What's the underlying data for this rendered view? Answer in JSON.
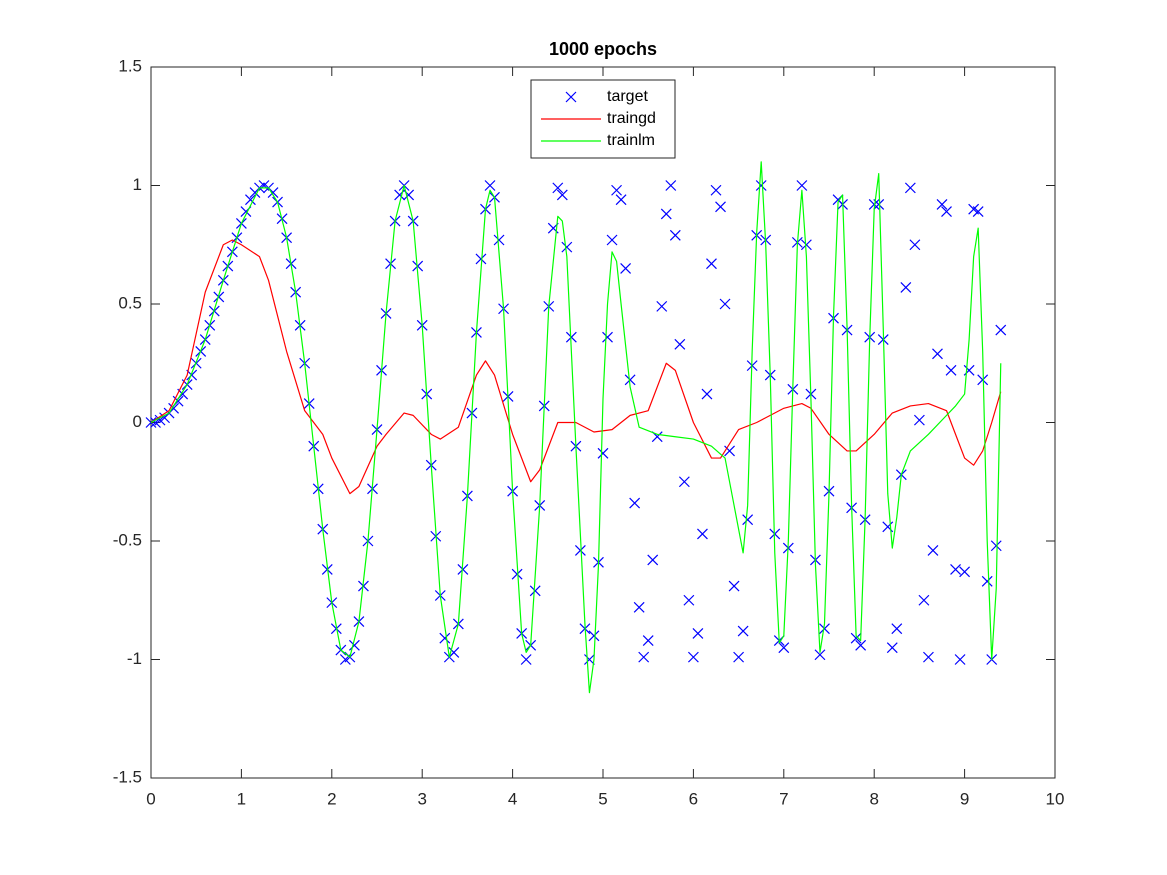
{
  "chart_data": {
    "type": "line",
    "title": "1000 epochs",
    "xlim": [
      0,
      10
    ],
    "ylim": [
      -1.5,
      1.5
    ],
    "xticks": [
      0,
      1,
      2,
      3,
      4,
      5,
      6,
      7,
      8,
      9,
      10
    ],
    "yticks": [
      -1.5,
      -1,
      -0.5,
      0,
      0.5,
      1,
      1.5
    ],
    "grid": false,
    "legend_location": "north",
    "series": [
      {
        "name": "target",
        "color": "#0000ff",
        "mode": "markers",
        "x": [
          0,
          0.05,
          0.1,
          0.15,
          0.2,
          0.25,
          0.3,
          0.35,
          0.4,
          0.45,
          0.5,
          0.55,
          0.6,
          0.65,
          0.7,
          0.75,
          0.8,
          0.85,
          0.9,
          0.95,
          1,
          1.05,
          1.1,
          1.15,
          1.2,
          1.25,
          1.3,
          1.35,
          1.4,
          1.45,
          1.5,
          1.55,
          1.6,
          1.65,
          1.7,
          1.75,
          1.8,
          1.85,
          1.9,
          1.95,
          2,
          2.05,
          2.1,
          2.15,
          2.2,
          2.25,
          2.3,
          2.35,
          2.4,
          2.45,
          2.5,
          2.55,
          2.6,
          2.65,
          2.7,
          2.75,
          2.8,
          2.85,
          2.9,
          2.95,
          3,
          3.05,
          3.1,
          3.15,
          3.2,
          3.25,
          3.3,
          3.35,
          3.4,
          3.45,
          3.5,
          3.55,
          3.6,
          3.65,
          3.7,
          3.75,
          3.8,
          3.85,
          3.9,
          3.95,
          4,
          4.05,
          4.1,
          4.15,
          4.2,
          4.25,
          4.3,
          4.35,
          4.4,
          4.45,
          4.5,
          4.55,
          4.6,
          4.65,
          4.7,
          4.75,
          4.8,
          4.85,
          4.9,
          4.95,
          5,
          5.05,
          5.1,
          5.15,
          5.2,
          5.25,
          5.3,
          5.35,
          5.4,
          5.45,
          5.5,
          5.55,
          5.6,
          5.65,
          5.7,
          5.75,
          5.8,
          5.85,
          5.9,
          5.95,
          6,
          6.05,
          6.1,
          6.15,
          6.2,
          6.25,
          6.3,
          6.35,
          6.4,
          6.45,
          6.5,
          6.55,
          6.6,
          6.65,
          6.7,
          6.75,
          6.8,
          6.85,
          6.9,
          6.95,
          7,
          7.05,
          7.1,
          7.15,
          7.2,
          7.25,
          7.3,
          7.35,
          7.4,
          7.45,
          7.5,
          7.55,
          7.6,
          7.65,
          7.7,
          7.75,
          7.8,
          7.85,
          7.9,
          7.95,
          8,
          8.05,
          8.1,
          8.15,
          8.2,
          8.25,
          8.3,
          8.35,
          8.4,
          8.45,
          8.5,
          8.55,
          8.6,
          8.65,
          8.7,
          8.75,
          8.8,
          8.85,
          8.9,
          8.95,
          9,
          9.05,
          9.1,
          9.15,
          9.2,
          9.25,
          9.3,
          9.35,
          9.4
        ],
        "values": [
          0,
          0,
          0.01,
          0.02,
          0.04,
          0.06,
          0.09,
          0.12,
          0.16,
          0.2,
          0.25,
          0.3,
          0.35,
          0.41,
          0.47,
          0.53,
          0.6,
          0.66,
          0.72,
          0.78,
          0.84,
          0.89,
          0.94,
          0.97,
          0.99,
          1,
          0.99,
          0.97,
          0.93,
          0.86,
          0.78,
          0.67,
          0.55,
          0.41,
          0.25,
          0.08,
          -0.1,
          -0.28,
          -0.45,
          -0.62,
          -0.76,
          -0.87,
          -0.96,
          -1,
          -0.99,
          -0.94,
          -0.84,
          -0.69,
          -0.5,
          -0.28,
          -0.03,
          0.22,
          0.46,
          0.67,
          0.85,
          0.96,
          1,
          0.96,
          0.85,
          0.66,
          0.41,
          0.12,
          -0.18,
          -0.48,
          -0.73,
          -0.91,
          -0.99,
          -0.97,
          -0.85,
          -0.62,
          -0.31,
          0.04,
          0.38,
          0.69,
          0.9,
          1,
          0.95,
          0.77,
          0.48,
          0.11,
          -0.29,
          -0.64,
          -0.89,
          -1,
          -0.94,
          -0.71,
          -0.35,
          0.07,
          0.49,
          0.82,
          0.99,
          0.96,
          0.74,
          0.36,
          -0.1,
          -0.54,
          -0.87,
          -1,
          -0.9,
          -0.59,
          -0.13,
          0.36,
          0.77,
          0.98,
          0.94,
          0.65,
          0.18,
          -0.34,
          -0.78,
          -0.99,
          -0.92,
          -0.58,
          -0.06,
          0.49,
          0.88,
          1,
          0.79,
          0.33,
          -0.25,
          -0.75,
          -0.99,
          -0.89,
          -0.47,
          0.12,
          0.67,
          0.98,
          0.91,
          0.5,
          -0.12,
          -0.69,
          -0.99,
          -0.88,
          -0.41,
          0.24,
          0.79,
          1,
          0.77,
          0.2,
          -0.47,
          -0.92,
          -0.95,
          -0.53,
          0.14,
          0.76,
          1,
          0.75,
          0.12,
          -0.58,
          -0.98,
          -0.87,
          -0.29,
          0.44,
          0.94,
          0.92,
          0.39,
          -0.36,
          -0.91,
          -0.94,
          -0.41,
          0.36,
          0.92,
          0.92,
          0.35,
          -0.44,
          -0.95,
          -0.87,
          -0.22,
          0.57,
          0.99,
          0.75,
          0.01,
          -0.75,
          -0.99,
          -0.54,
          0.29,
          0.92,
          0.89,
          0.22,
          -0.62,
          -1,
          -0.63,
          0.22,
          0.9,
          0.89,
          0.18,
          -0.67,
          -1,
          -0.52,
          0.39
        ]
      },
      {
        "name": "traingd",
        "color": "#ff0000",
        "mode": "lines",
        "x": [
          0,
          0.2,
          0.4,
          0.6,
          0.8,
          0.9,
          1,
          1.2,
          1.3,
          1.5,
          1.7,
          1.9,
          2,
          2.2,
          2.3,
          2.5,
          2.6,
          2.8,
          2.9,
          3.1,
          3.2,
          3.4,
          3.6,
          3.7,
          3.8,
          4,
          4.2,
          4.3,
          4.5,
          4.7,
          4.9,
          5.1,
          5.3,
          5.5,
          5.7,
          5.8,
          6,
          6.2,
          6.3,
          6.5,
          6.7,
          6.8,
          7,
          7.2,
          7.3,
          7.5,
          7.7,
          7.8,
          8,
          8.2,
          8.4,
          8.6,
          8.8,
          8.9,
          9,
          9.1,
          9.2,
          9.3,
          9.4
        ],
        "values": [
          0,
          0.05,
          0.2,
          0.55,
          0.75,
          0.77,
          0.75,
          0.7,
          0.6,
          0.3,
          0.05,
          -0.05,
          -0.15,
          -0.3,
          -0.27,
          -0.1,
          -0.05,
          0.04,
          0.03,
          -0.05,
          -0.07,
          -0.02,
          0.2,
          0.26,
          0.2,
          -0.05,
          -0.25,
          -0.2,
          0,
          0,
          -0.04,
          -0.03,
          0.03,
          0.05,
          0.25,
          0.22,
          0,
          -0.15,
          -0.15,
          -0.03,
          0,
          0.02,
          0.06,
          0.08,
          0.06,
          -0.05,
          -0.12,
          -0.12,
          -0.05,
          0.04,
          0.07,
          0.08,
          0.05,
          -0.05,
          -0.15,
          -0.18,
          -0.12,
          0,
          0.13
        ]
      },
      {
        "name": "trainlm",
        "color": "#00ff00",
        "mode": "lines",
        "x": [
          0,
          0.2,
          0.4,
          0.6,
          0.8,
          1,
          1.2,
          1.3,
          1.4,
          1.5,
          1.6,
          1.7,
          1.8,
          1.9,
          2,
          2.1,
          2.2,
          2.3,
          2.4,
          2.5,
          2.6,
          2.7,
          2.8,
          2.9,
          3,
          3.1,
          3.2,
          3.3,
          3.4,
          3.5,
          3.6,
          3.7,
          3.75,
          3.8,
          3.9,
          4,
          4.1,
          4.15,
          4.2,
          4.3,
          4.4,
          4.5,
          4.55,
          4.6,
          4.7,
          4.8,
          4.85,
          4.9,
          4.95,
          5,
          5.05,
          5.1,
          5.15,
          5.2,
          5.3,
          5.4,
          5.6,
          5.8,
          6,
          6.2,
          6.35,
          6.45,
          6.55,
          6.6,
          6.65,
          6.7,
          6.75,
          6.8,
          6.85,
          6.9,
          6.95,
          7,
          7.05,
          7.1,
          7.15,
          7.2,
          7.25,
          7.3,
          7.35,
          7.4,
          7.45,
          7.5,
          7.55,
          7.6,
          7.65,
          7.7,
          7.75,
          7.8,
          7.85,
          7.9,
          7.95,
          8,
          8.05,
          8.1,
          8.15,
          8.2,
          8.25,
          8.3,
          8.4,
          8.6,
          8.8,
          8.9,
          9,
          9.05,
          9.1,
          9.15,
          9.2,
          9.25,
          9.3,
          9.35,
          9.4
        ],
        "values": [
          0,
          0.04,
          0.16,
          0.35,
          0.6,
          0.84,
          0.99,
          0.99,
          0.93,
          0.78,
          0.55,
          0.25,
          -0.1,
          -0.45,
          -0.76,
          -0.96,
          -0.99,
          -0.84,
          -0.5,
          -0.03,
          0.46,
          0.85,
          1,
          0.85,
          0.41,
          -0.18,
          -0.73,
          -0.99,
          -0.85,
          -0.31,
          0.38,
          0.9,
          0.98,
          0.95,
          0.48,
          -0.29,
          -0.89,
          -0.97,
          -0.94,
          -0.35,
          0.49,
          0.87,
          0.85,
          0.7,
          -0.1,
          -0.85,
          -1.14,
          -1,
          -0.6,
          0.1,
          0.5,
          0.72,
          0.68,
          0.5,
          0.15,
          -0.02,
          -0.05,
          -0.06,
          -0.07,
          -0.1,
          -0.15,
          -0.35,
          -0.55,
          -0.35,
          0.3,
          0.8,
          1.1,
          0.75,
          0.2,
          -0.55,
          -0.93,
          -0.9,
          -0.5,
          0.15,
          0.75,
          0.98,
          0.7,
          0.1,
          -0.6,
          -0.97,
          -0.85,
          -0.3,
          0.45,
          0.93,
          0.96,
          0.4,
          -0.35,
          -0.9,
          -0.92,
          -0.4,
          0.35,
          0.9,
          1.05,
          0.4,
          -0.3,
          -0.53,
          -0.4,
          -0.22,
          -0.12,
          -0.05,
          0.03,
          0.07,
          0.12,
          0.35,
          0.7,
          0.82,
          0.3,
          -0.5,
          -1,
          -0.7,
          0.25
        ]
      }
    ]
  }
}
